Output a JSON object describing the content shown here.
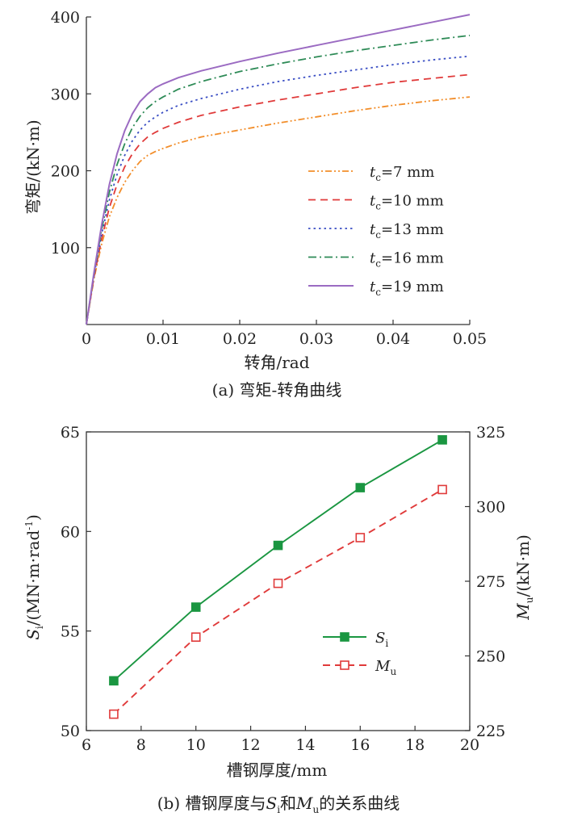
{
  "captions": {
    "a": "(a) 弯矩-转角曲线",
    "b": {
      "prefix": "(b) 槽钢厚度与",
      "s_main": "S",
      "s_sub": "i",
      "mid": "和",
      "m_main": "M",
      "m_sub": "u",
      "suffix": "的关系曲线"
    }
  },
  "chart_data": [
    {
      "type": "line",
      "xlabel": "转角/rad",
      "ylabel": "弯矩/(kN·m)",
      "xlim": [
        0,
        0.05
      ],
      "ylim": [
        0,
        400
      ],
      "xticks": [
        "0",
        "0.01",
        "0.02",
        "0.03",
        "0.04",
        "0.05"
      ],
      "yticks": [
        "100",
        "200",
        "300",
        "400"
      ],
      "legend_position": "right-middle",
      "x": [
        0,
        0.001,
        0.002,
        0.003,
        0.004,
        0.005,
        0.006,
        0.007,
        0.008,
        0.009,
        0.01,
        0.012,
        0.015,
        0.02,
        0.025,
        0.03,
        0.035,
        0.04,
        0.045,
        0.05
      ],
      "series": [
        {
          "name_main": "t",
          "name_sub": "c",
          "name_rest": "=7 mm",
          "color": "#f28e2b",
          "dash": "dashdotdot",
          "values": [
            0,
            60,
            105,
            140,
            165,
            185,
            200,
            212,
            220,
            225,
            229,
            236,
            244,
            253,
            262,
            270,
            278,
            285,
            291,
            296
          ]
        },
        {
          "name_main": "t",
          "name_sub": "c",
          "name_rest": "=10 mm",
          "color": "#e03a3a",
          "dash": "dash",
          "values": [
            0,
            62,
            112,
            152,
            182,
            205,
            222,
            235,
            244,
            250,
            255,
            263,
            272,
            283,
            292,
            300,
            308,
            315,
            320,
            325
          ]
        },
        {
          "name_main": "t",
          "name_sub": "c",
          "name_rest": "=13 mm",
          "color": "#3b4fc4",
          "dash": "dot",
          "values": [
            0,
            64,
            118,
            162,
            195,
            220,
            239,
            253,
            263,
            270,
            276,
            285,
            294,
            306,
            316,
            324,
            331,
            338,
            344,
            349
          ]
        },
        {
          "name_main": "t",
          "name_sub": "c",
          "name_rest": "=16 mm",
          "color": "#2e8b57",
          "dash": "dashdot",
          "values": [
            0,
            66,
            124,
            172,
            208,
            235,
            256,
            271,
            282,
            290,
            296,
            306,
            316,
            329,
            339,
            348,
            356,
            363,
            370,
            376
          ]
        },
        {
          "name_main": "t",
          "name_sub": "c",
          "name_rest": "=19 mm",
          "color": "#9b6bc2",
          "dash": "solid",
          "values": [
            0,
            68,
            130,
            182,
            222,
            252,
            274,
            290,
            300,
            308,
            313,
            321,
            330,
            342,
            353,
            363,
            373,
            383,
            393,
            403
          ]
        }
      ]
    },
    {
      "type": "line",
      "xlabel": "槽钢厚度/mm",
      "ylabel_left": "Si/(MN·m·rad-1)",
      "ylabel_right": "Mu/(kN·m)",
      "xlim": [
        6,
        20
      ],
      "ylim_left": [
        50,
        65
      ],
      "ylim_right": [
        225,
        325
      ],
      "xticks": [
        "6",
        "8",
        "10",
        "12",
        "14",
        "16",
        "18",
        "20"
      ],
      "yticks_left": [
        "50",
        "55",
        "60",
        "65"
      ],
      "yticks_right": [
        "225",
        "250",
        "275",
        "300",
        "325"
      ],
      "legend_position": "right-middle",
      "x": [
        7,
        10,
        13,
        16,
        19
      ],
      "series": [
        {
          "name_main": "S",
          "name_sub": "i",
          "axis": "left",
          "color": "#1a9641",
          "marker": "filled-square",
          "dash": "solid",
          "values": [
            52.5,
            56.2,
            59.3,
            62.2,
            64.6
          ]
        },
        {
          "name_main": "M",
          "name_sub": "u",
          "axis": "right",
          "color": "#e03a3a",
          "marker": "open-square",
          "dash": "dash",
          "values": [
            230.5,
            256.3,
            274.3,
            289.6,
            305.7
          ]
        }
      ]
    }
  ]
}
